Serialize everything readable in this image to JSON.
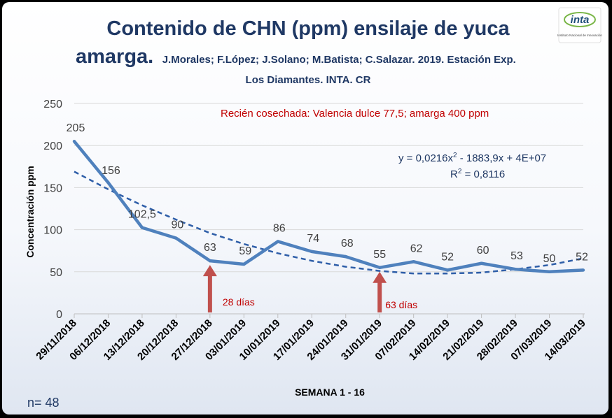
{
  "colors": {
    "series": "#4f81bd",
    "trend": "#2e5ea8",
    "arrow": "#c0504d",
    "title": "#1f3864",
    "note": "#c00000",
    "grid": "#d9d9d9"
  },
  "logo": {
    "text": "inta",
    "subtext": "Instituto Nacional de Innovación",
    "icon": "inta-logo-icon"
  },
  "sample_size": "n= 48",
  "annotations": {
    "note": "Recién cosechada: Valencia dulce 77,5;  amarga 400 ppm",
    "arrow1": {
      "label": "28 días",
      "category_index": 4
    },
    "arrow2": {
      "label": "63 días",
      "category_index": 9
    },
    "equation_main": "y = 0,0216x",
    "equation_sup": "2",
    "equation_rest": " - 1883,9x + 4E+07",
    "r2_main": "R",
    "r2_sup": "2",
    "r2_rest": " = 0,8116"
  },
  "chart_data": {
    "type": "line",
    "title_line1": "Contenido de CHN (ppm) ensilaje de yuca",
    "title_line2_big": "amarga.",
    "title_line2_small": "J.Morales; F.López; J.Solano; M.Batista; C.Salazar. 2019. Estación Exp.",
    "title_line3": "Los Diamantes. INTA. CR",
    "xlabel": "SEMANA 1 - 16",
    "ylabel": "Concentración ppm",
    "ylim": [
      0,
      250
    ],
    "yticks": [
      "0",
      "50",
      "100",
      "150",
      "200",
      "250"
    ],
    "grid": "horizontal",
    "categories": [
      "29/11/2018",
      "06/12/2018",
      "13/12/2018",
      "20/12/2018",
      "27/12/2018",
      "03/01/2019",
      "10/01/2019",
      "17/01/2019",
      "24/01/2019",
      "31/01/2019",
      "07/02/2019",
      "14/02/2019",
      "21/02/2019",
      "28/02/2019",
      "07/03/2019",
      "14/03/2019"
    ],
    "series": [
      {
        "name": "CHN",
        "values": [
          205,
          156,
          102.5,
          90,
          63,
          59,
          86,
          74,
          68,
          55,
          62,
          52,
          60,
          53,
          50,
          52
        ],
        "labels": [
          "205",
          "156",
          "102,5",
          "90",
          "63",
          "59",
          "86",
          "74",
          "68",
          "55",
          "62",
          "52",
          "60",
          "53",
          "50",
          "52"
        ]
      }
    ],
    "trendline": {
      "type": "polynomial",
      "order": 2,
      "values": [
        169,
        148,
        129,
        112,
        96,
        83,
        72,
        63,
        56,
        51,
        48,
        48,
        49,
        53,
        58,
        66
      ]
    }
  }
}
